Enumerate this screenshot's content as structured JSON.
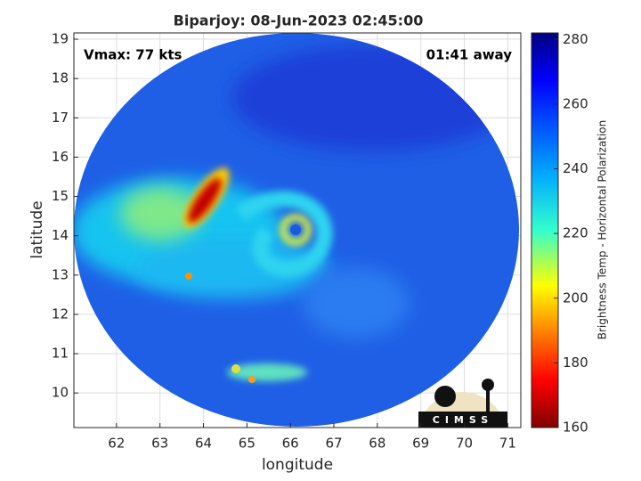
{
  "title": "Biparjoy: 08-Jun-2023 02:45:00",
  "annotations": {
    "vmax": "Vmax: 77 kts",
    "away": "01:41 away"
  },
  "x_label": "longitude",
  "y_label": "latitude",
  "xlim": [
    61.02,
    71.3
  ],
  "xticks": [
    62,
    63,
    64,
    65,
    66,
    67,
    68,
    69,
    70,
    71
  ],
  "ylim": [
    9.12,
    19.16
  ],
  "yticks": [
    10,
    11,
    12,
    13,
    14,
    15,
    16,
    17,
    18,
    19
  ],
  "grid": true,
  "colorbar": {
    "label": "Brightness Temp - Horizontal Polarization",
    "lim": [
      160,
      282
    ],
    "ticks": [
      160,
      180,
      200,
      220,
      240,
      260,
      280
    ]
  },
  "logo": "CIMSS"
}
